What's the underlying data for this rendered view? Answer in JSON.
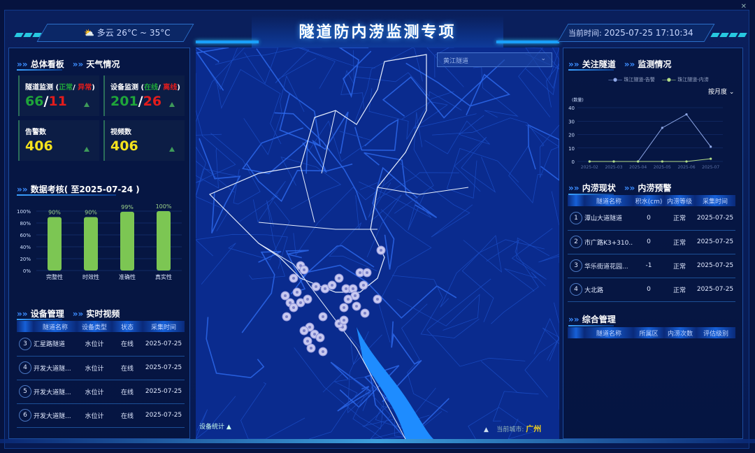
{
  "header": {
    "title": "隧道防内涝监测专项",
    "weather_icon": "partly-cloudy-icon",
    "weather": "多云 26°C ~ 35°C",
    "time_label": "当前时间:",
    "time_value": "2025-07-25 17:10:34"
  },
  "left": {
    "overview": {
      "tabs": [
        "总体看板",
        "天气情况"
      ],
      "cards": [
        {
          "label": "隧道监测",
          "sub_ok": "正常",
          "sub_bad": "异常",
          "ok": "66",
          "bad": "11"
        },
        {
          "label": "设备监测",
          "sub_ok": "在线",
          "sub_bad": "离线",
          "ok": "201",
          "bad": "26"
        },
        {
          "label": "告警数",
          "value": "406"
        },
        {
          "label": "视频数",
          "value": "406"
        }
      ]
    },
    "assessment": {
      "title": "数据考核( 至2025-07-24 )"
    },
    "devices": {
      "tabs": [
        "设备管理",
        "实时视频"
      ],
      "columns": [
        "隧道名称",
        "设备类型",
        "状态",
        "采集时间"
      ],
      "rows": [
        {
          "no": "3",
          "name": "汇星路隧道",
          "type": "水位计",
          "status": "在线",
          "time": "2025-07-25"
        },
        {
          "no": "4",
          "name": "开发大道隧...",
          "type": "水位计",
          "status": "在线",
          "time": "2025-07-25"
        },
        {
          "no": "5",
          "name": "开发大道隧...",
          "type": "水位计",
          "status": "在线",
          "time": "2025-07-25"
        },
        {
          "no": "6",
          "name": "开发大道隧...",
          "type": "水位计",
          "status": "在线",
          "time": "2025-07-25"
        }
      ]
    }
  },
  "map": {
    "select_value": "黄江隧道",
    "device_stats": "设备统计",
    "city_label": "当前城市:",
    "city": "广州"
  },
  "right": {
    "focus": {
      "tabs": [
        "关注隧道",
        "监测情况"
      ],
      "period": "按月度"
    },
    "waterlog": {
      "tabs": [
        "内涝现状",
        "内涝预警"
      ],
      "columns": [
        "隧道名称",
        "积水(cm)",
        "内涝等级",
        "采集时间"
      ],
      "rows": [
        {
          "no": "1",
          "name": "潭山大道隧道",
          "water": "0",
          "level": "正常",
          "time": "2025-07-25"
        },
        {
          "no": "2",
          "name": "市广路K3+310...",
          "water": "0",
          "level": "正常",
          "time": "2025-07-25"
        },
        {
          "no": "3",
          "name": "华乐街道花园...",
          "water": "-1",
          "level": "正常",
          "time": "2025-07-25"
        },
        {
          "no": "4",
          "name": "大北路",
          "water": "0",
          "level": "正常",
          "time": "2025-07-25"
        }
      ]
    },
    "management": {
      "title": "综合管理",
      "columns": [
        "隧道名称",
        "所属区",
        "内涝次数",
        "评估级别"
      ]
    }
  },
  "chart_data": [
    {
      "type": "bar",
      "categories": [
        "完整性",
        "时效性",
        "准确性",
        "真实性"
      ],
      "values": [
        90,
        90,
        99,
        100
      ],
      "data_labels": [
        "90%",
        "90%",
        "99%",
        "100%"
      ],
      "ylim": [
        0,
        100
      ],
      "yticks": [
        "0%",
        "20%",
        "40%",
        "60%",
        "80%",
        "100%"
      ],
      "color": "#7cc653",
      "grid": true
    },
    {
      "type": "line",
      "categories": [
        "2025-02",
        "2025-03",
        "2025-04",
        "2025-05",
        "2025-06",
        "2025-07"
      ],
      "ylabel": "(数量)",
      "ylim": [
        0,
        40
      ],
      "yticks": [
        "0",
        "10",
        "20",
        "30",
        "40"
      ],
      "legend_position": "top",
      "series": [
        {
          "name": "珠江隧道-告警",
          "values": [
            0,
            0,
            0,
            25,
            35,
            11
          ],
          "color": "#8fa8e8"
        },
        {
          "name": "珠江隧道-内涝",
          "values": [
            0,
            0,
            0,
            0,
            0,
            2
          ],
          "color": "#b5e08a"
        }
      ]
    }
  ]
}
